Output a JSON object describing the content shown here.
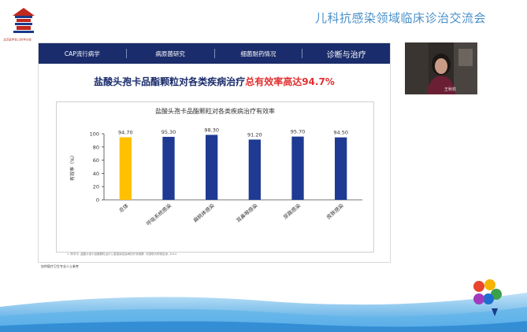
{
  "header": {
    "logo_caption": "北京医学会儿科学分会",
    "conference_title": "儿科抗感染领域临床诊治交流会"
  },
  "slide": {
    "nav": [
      {
        "label": "CAP流行病学",
        "active": false
      },
      {
        "label": "病原菌研究",
        "active": false
      },
      {
        "label": "细菌耐药情况",
        "active": false
      },
      {
        "label": "诊断与治疗",
        "active": true
      }
    ],
    "headline_main": "盐酸头孢卡品酯颗粒对各类疾病治疗",
    "headline_highlight": "总有效率高达94.7%",
    "footnote": "1. 陈学平. 盐酸头孢卡品酯颗粒治疗儿童感染性疾病的疗效观察. 中国现代药物应用, 2014",
    "bottom_note": "仅供医疗卫生专业人士参考"
  },
  "chart_data": {
    "type": "bar",
    "title": "盐酸头孢卡品酯颗粒对各类疾病治疗有效率",
    "ylabel": "有效率（%）",
    "xlabel": "",
    "ylim": [
      0,
      100
    ],
    "yticks": [
      0,
      20,
      40,
      60,
      80,
      100
    ],
    "grid": false,
    "categories": [
      "总体",
      "呼吸系统感染",
      "扁桃体感染",
      "耳鼻喉感染",
      "尿路感染",
      "皮肤感染"
    ],
    "values": [
      94.7,
      95.3,
      98.3,
      91.2,
      95.7,
      94.5
    ],
    "value_labels": [
      "94.70",
      "95.30",
      "98.30",
      "91.20",
      "95.70",
      "94.50"
    ],
    "colors": {
      "highlight": "#ffc000",
      "default": "#1f3a93"
    }
  },
  "video": {
    "participant_name": "王秋欢"
  }
}
